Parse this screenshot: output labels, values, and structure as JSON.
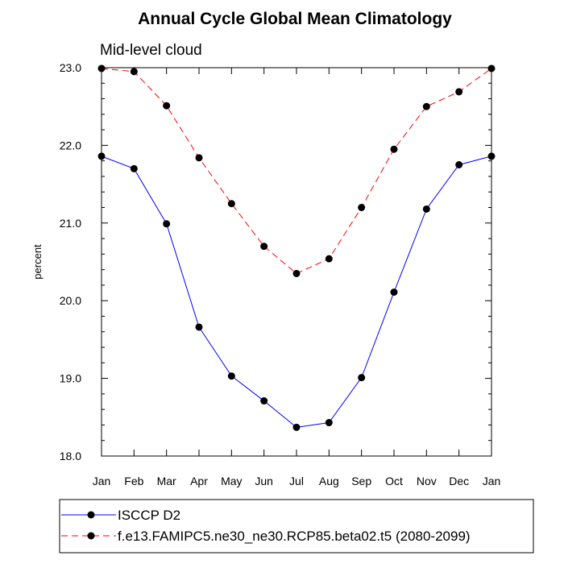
{
  "chart_data": {
    "type": "line",
    "title": "Annual Cycle Global Mean Climatology",
    "subtitle": "Mid-level cloud",
    "xlabel": "",
    "ylabel": "percent",
    "categories": [
      "Jan",
      "Feb",
      "Mar",
      "Apr",
      "May",
      "Jun",
      "Jul",
      "Aug",
      "Sep",
      "Oct",
      "Nov",
      "Dec",
      "Jan"
    ],
    "ylim": [
      18.0,
      23.0
    ],
    "yticks": [
      "18.0",
      "19.0",
      "20.0",
      "21.0",
      "22.0",
      "23.0"
    ],
    "ytick_values": [
      18.0,
      19.0,
      20.0,
      21.0,
      22.0,
      23.0
    ],
    "legend_position": "bottom",
    "series": [
      {
        "name": "ISCCP D2",
        "color": "#0000ff",
        "style": "solid",
        "values": [
          21.86,
          21.7,
          20.99,
          19.66,
          19.03,
          18.71,
          18.37,
          18.43,
          19.01,
          20.11,
          21.18,
          21.75,
          21.86
        ]
      },
      {
        "name": "f.e13.FAMIPC5.ne30_ne30.RCP85.beta02.t5 (2080-2099)",
        "color": "#ff0000",
        "style": "dashed",
        "values": [
          22.99,
          22.95,
          22.51,
          21.84,
          21.25,
          20.7,
          20.35,
          20.54,
          21.2,
          21.95,
          22.5,
          22.69,
          22.99
        ]
      }
    ]
  }
}
